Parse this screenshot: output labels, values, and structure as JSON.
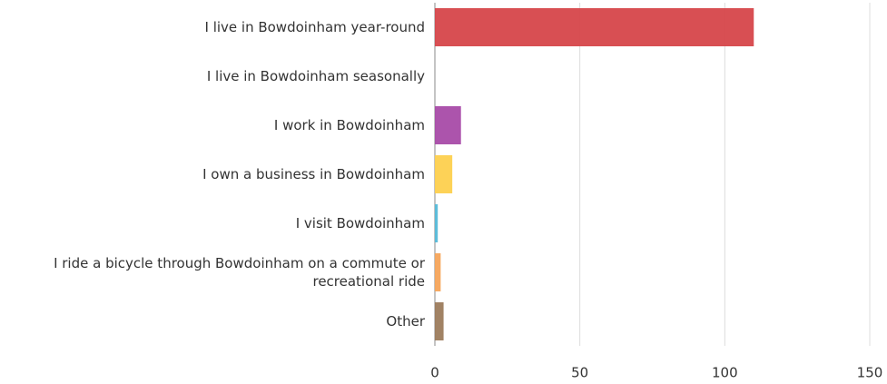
{
  "chart_data": {
    "type": "hbar",
    "categories": [
      "I live in Bowdoinham year-round",
      "I live in Bowdoinham seasonally",
      "I work in Bowdoinham",
      "I own a business in Bowdoinham",
      "I visit Bowdoinham",
      "I ride a bicycle through Bowdoinham on a commute or recreational ride",
      "Other"
    ],
    "values": [
      110,
      0,
      9,
      6,
      1,
      2,
      3
    ],
    "colors": [
      "#d6464a",
      "#e0e0e0",
      "#a84ba8",
      "#fdd04e",
      "#55b9d8",
      "#f6a45a",
      "#9c7b5c"
    ],
    "xlim": [
      0,
      150
    ],
    "xticks": [
      0,
      50,
      100,
      150
    ],
    "grid": true
  }
}
